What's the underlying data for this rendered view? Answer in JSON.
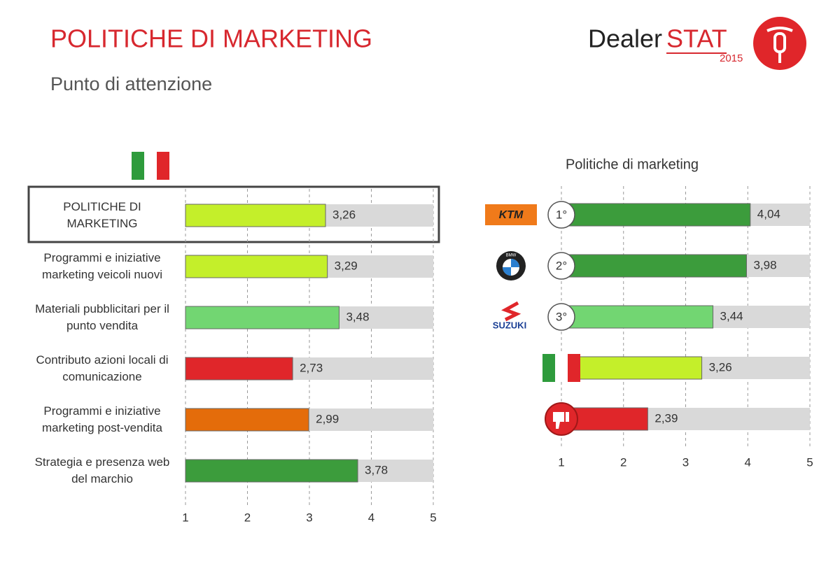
{
  "header": {
    "title": "POLITICHE DI MARKETING",
    "subtitle": "Punto di attenzione",
    "logo_dealer": "Dealer",
    "logo_stat": "STAT",
    "logo_year": "2015"
  },
  "chart_data": [
    {
      "type": "bar",
      "orientation": "horizontal",
      "categories": [
        "POLITICHE DI MARKETING",
        "Programmi e iniziative marketing veicoli nuovi",
        "Materiali pubblicitari per il punto vendita",
        "Contributo azioni locali di comunicazione",
        "Programmi e iniziative marketing post-vendita",
        "Strategia e presenza web del marchio"
      ],
      "values": [
        3.26,
        3.29,
        3.48,
        2.73,
        2.99,
        3.78
      ],
      "value_labels": [
        "3,26",
        "3,29",
        "3,48",
        "2,73",
        "2,99",
        "3,78"
      ],
      "colors": [
        "#c4ef2a",
        "#c4ef2a",
        "#72d672",
        "#e0262a",
        "#e46c0a",
        "#3c9c3c"
      ],
      "xlim": [
        1,
        5
      ],
      "xticks": [
        1,
        2,
        3,
        4,
        5
      ],
      "grid": true
    },
    {
      "type": "bar",
      "orientation": "horizontal",
      "title": "Politiche di marketing",
      "categories": [
        "KTM",
        "BMW",
        "SUZUKI",
        null,
        null
      ],
      "ranks": [
        "1°",
        "2°",
        "3°",
        null,
        null
      ],
      "values": [
        4.04,
        3.98,
        3.44,
        3.26,
        2.39
      ],
      "value_labels": [
        "4,04",
        "3,98",
        "3,44",
        "3,26",
        "2,39"
      ],
      "colors": [
        "#3c9c3c",
        "#3c9c3c",
        "#72d672",
        "#c4ef2a",
        "#e0262a"
      ],
      "xlim": [
        1,
        5
      ],
      "xticks": [
        1,
        2,
        3,
        4,
        5
      ],
      "grid": true
    }
  ]
}
